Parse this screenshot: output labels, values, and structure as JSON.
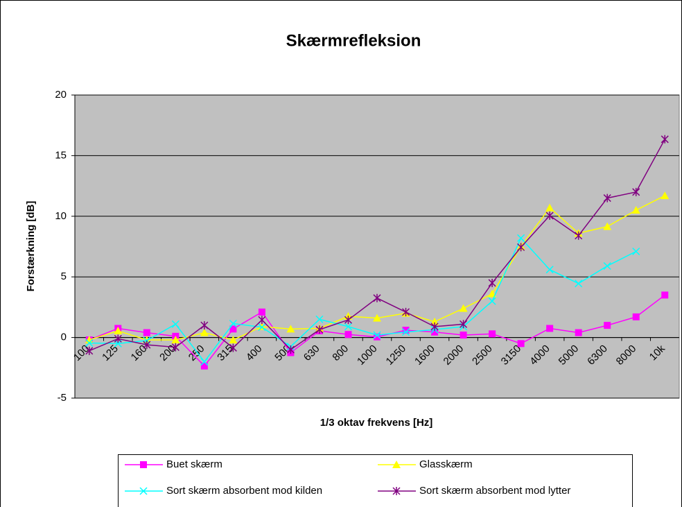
{
  "chart_data": {
    "type": "line",
    "title": "Skærmrefleksion",
    "x_label": "1/3 oktav frekvens [Hz]",
    "y_label": "Forstærkning [dB]",
    "categories": [
      "100",
      "125",
      "160",
      "200",
      "250",
      "315",
      "400",
      "500",
      "630",
      "800",
      "1000",
      "1250",
      "1600",
      "2000",
      "2500",
      "3150",
      "4000",
      "5000",
      "6300",
      "8000",
      "10k"
    ],
    "ylim": [
      -5,
      20
    ],
    "yticks": [
      -5,
      0,
      5,
      10,
      15,
      20
    ],
    "grid": true,
    "legend": "bottom",
    "series": [
      {
        "name": "Buet skærm",
        "color": "#FF00FF",
        "marker": "square",
        "values": [
          -0.2,
          0.75,
          0.4,
          0.1,
          -2.35,
          0.7,
          2.1,
          -1.25,
          0.55,
          0.25,
          0.05,
          0.6,
          0.45,
          0.2,
          0.3,
          -0.5,
          0.75,
          0.4,
          1.0,
          1.7,
          3.5
        ]
      },
      {
        "name": "Glasskærm",
        "color": "#FFFF00",
        "marker": "triangle",
        "values": [
          -0.2,
          0.55,
          -0.2,
          -0.2,
          0.4,
          -0.2,
          0.9,
          0.7,
          0.75,
          1.75,
          1.6,
          2.0,
          1.3,
          2.4,
          3.6,
          7.5,
          10.7,
          8.6,
          9.15,
          10.5,
          11.7
        ]
      },
      {
        "name": "Sort skærm absorbent mod kilden",
        "color": "#00FFFF",
        "marker": "x",
        "values": [
          -0.45,
          -0.5,
          -0.25,
          1.1,
          -2.0,
          1.15,
          0.85,
          -0.75,
          1.5,
          0.9,
          0.2,
          0.45,
          0.65,
          0.9,
          3.0,
          8.2,
          5.6,
          4.45,
          5.9,
          7.1,
          null
        ]
      },
      {
        "name": "Sort skærm absorbent mod lytter",
        "color": "#800080",
        "marker": "star",
        "values": [
          -1.1,
          -0.1,
          -0.6,
          -0.8,
          1.0,
          -0.85,
          1.45,
          -1.0,
          0.65,
          1.45,
          3.25,
          2.1,
          0.9,
          1.1,
          4.5,
          7.45,
          10.05,
          8.4,
          11.5,
          12.0,
          16.35
        ]
      }
    ]
  }
}
